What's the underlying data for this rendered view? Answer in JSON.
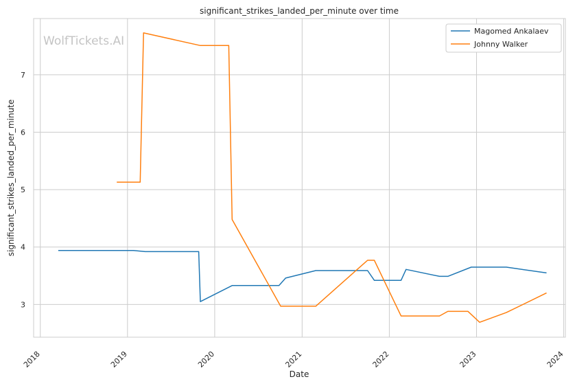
{
  "watermark": "WolfTickets.AI",
  "chart_data": {
    "type": "line",
    "title": "significant_strikes_landed_per_minute over time",
    "xlabel": "Date",
    "ylabel": "significant_strikes_landed_per_minute",
    "x_ticks": [
      "2018",
      "2019",
      "2020",
      "2021",
      "2022",
      "2023",
      "2024"
    ],
    "y_ticks": [
      3,
      4,
      5,
      6,
      7
    ],
    "xlim": [
      "2017-12-04",
      "2024-01-08"
    ],
    "ylim": [
      2.43,
      7.98
    ],
    "grid": true,
    "legend_position": "top-right",
    "series": [
      {
        "name": "Magomed Ankalaev",
        "color": "#1f77b4",
        "points": [
          [
            "2018-03-17",
            3.94
          ],
          [
            "2019-01-26",
            3.94
          ],
          [
            "2019-03-16",
            3.92
          ],
          [
            "2019-10-26",
            3.92
          ],
          [
            "2019-11-02",
            3.05
          ],
          [
            "2020-03-14",
            3.33
          ],
          [
            "2020-09-26",
            3.33
          ],
          [
            "2020-10-24",
            3.46
          ],
          [
            "2021-02-27",
            3.59
          ],
          [
            "2021-10-02",
            3.59
          ],
          [
            "2021-10-30",
            3.42
          ],
          [
            "2022-02-19",
            3.42
          ],
          [
            "2022-03-12",
            3.61
          ],
          [
            "2022-07-30",
            3.49
          ],
          [
            "2022-09-03",
            3.49
          ],
          [
            "2022-12-10",
            3.65
          ],
          [
            "2023-05-06",
            3.65
          ],
          [
            "2023-10-21",
            3.55
          ]
        ]
      },
      {
        "name": "Johnny Walker",
        "color": "#ff7f0e",
        "points": [
          [
            "2018-11-17",
            5.13
          ],
          [
            "2019-02-23",
            5.13
          ],
          [
            "2019-03-09",
            7.73
          ],
          [
            "2019-11-02",
            7.51
          ],
          [
            "2020-02-29",
            7.51
          ],
          [
            "2020-03-14",
            4.48
          ],
          [
            "2020-10-03",
            2.97
          ],
          [
            "2021-02-27",
            2.97
          ],
          [
            "2021-10-02",
            3.77
          ],
          [
            "2021-10-30",
            3.77
          ],
          [
            "2022-02-19",
            2.8
          ],
          [
            "2022-07-30",
            2.8
          ],
          [
            "2022-09-03",
            2.88
          ],
          [
            "2022-11-26",
            2.88
          ],
          [
            "2023-01-14",
            2.69
          ],
          [
            "2023-05-06",
            2.86
          ],
          [
            "2023-10-21",
            3.2
          ]
        ]
      }
    ]
  }
}
